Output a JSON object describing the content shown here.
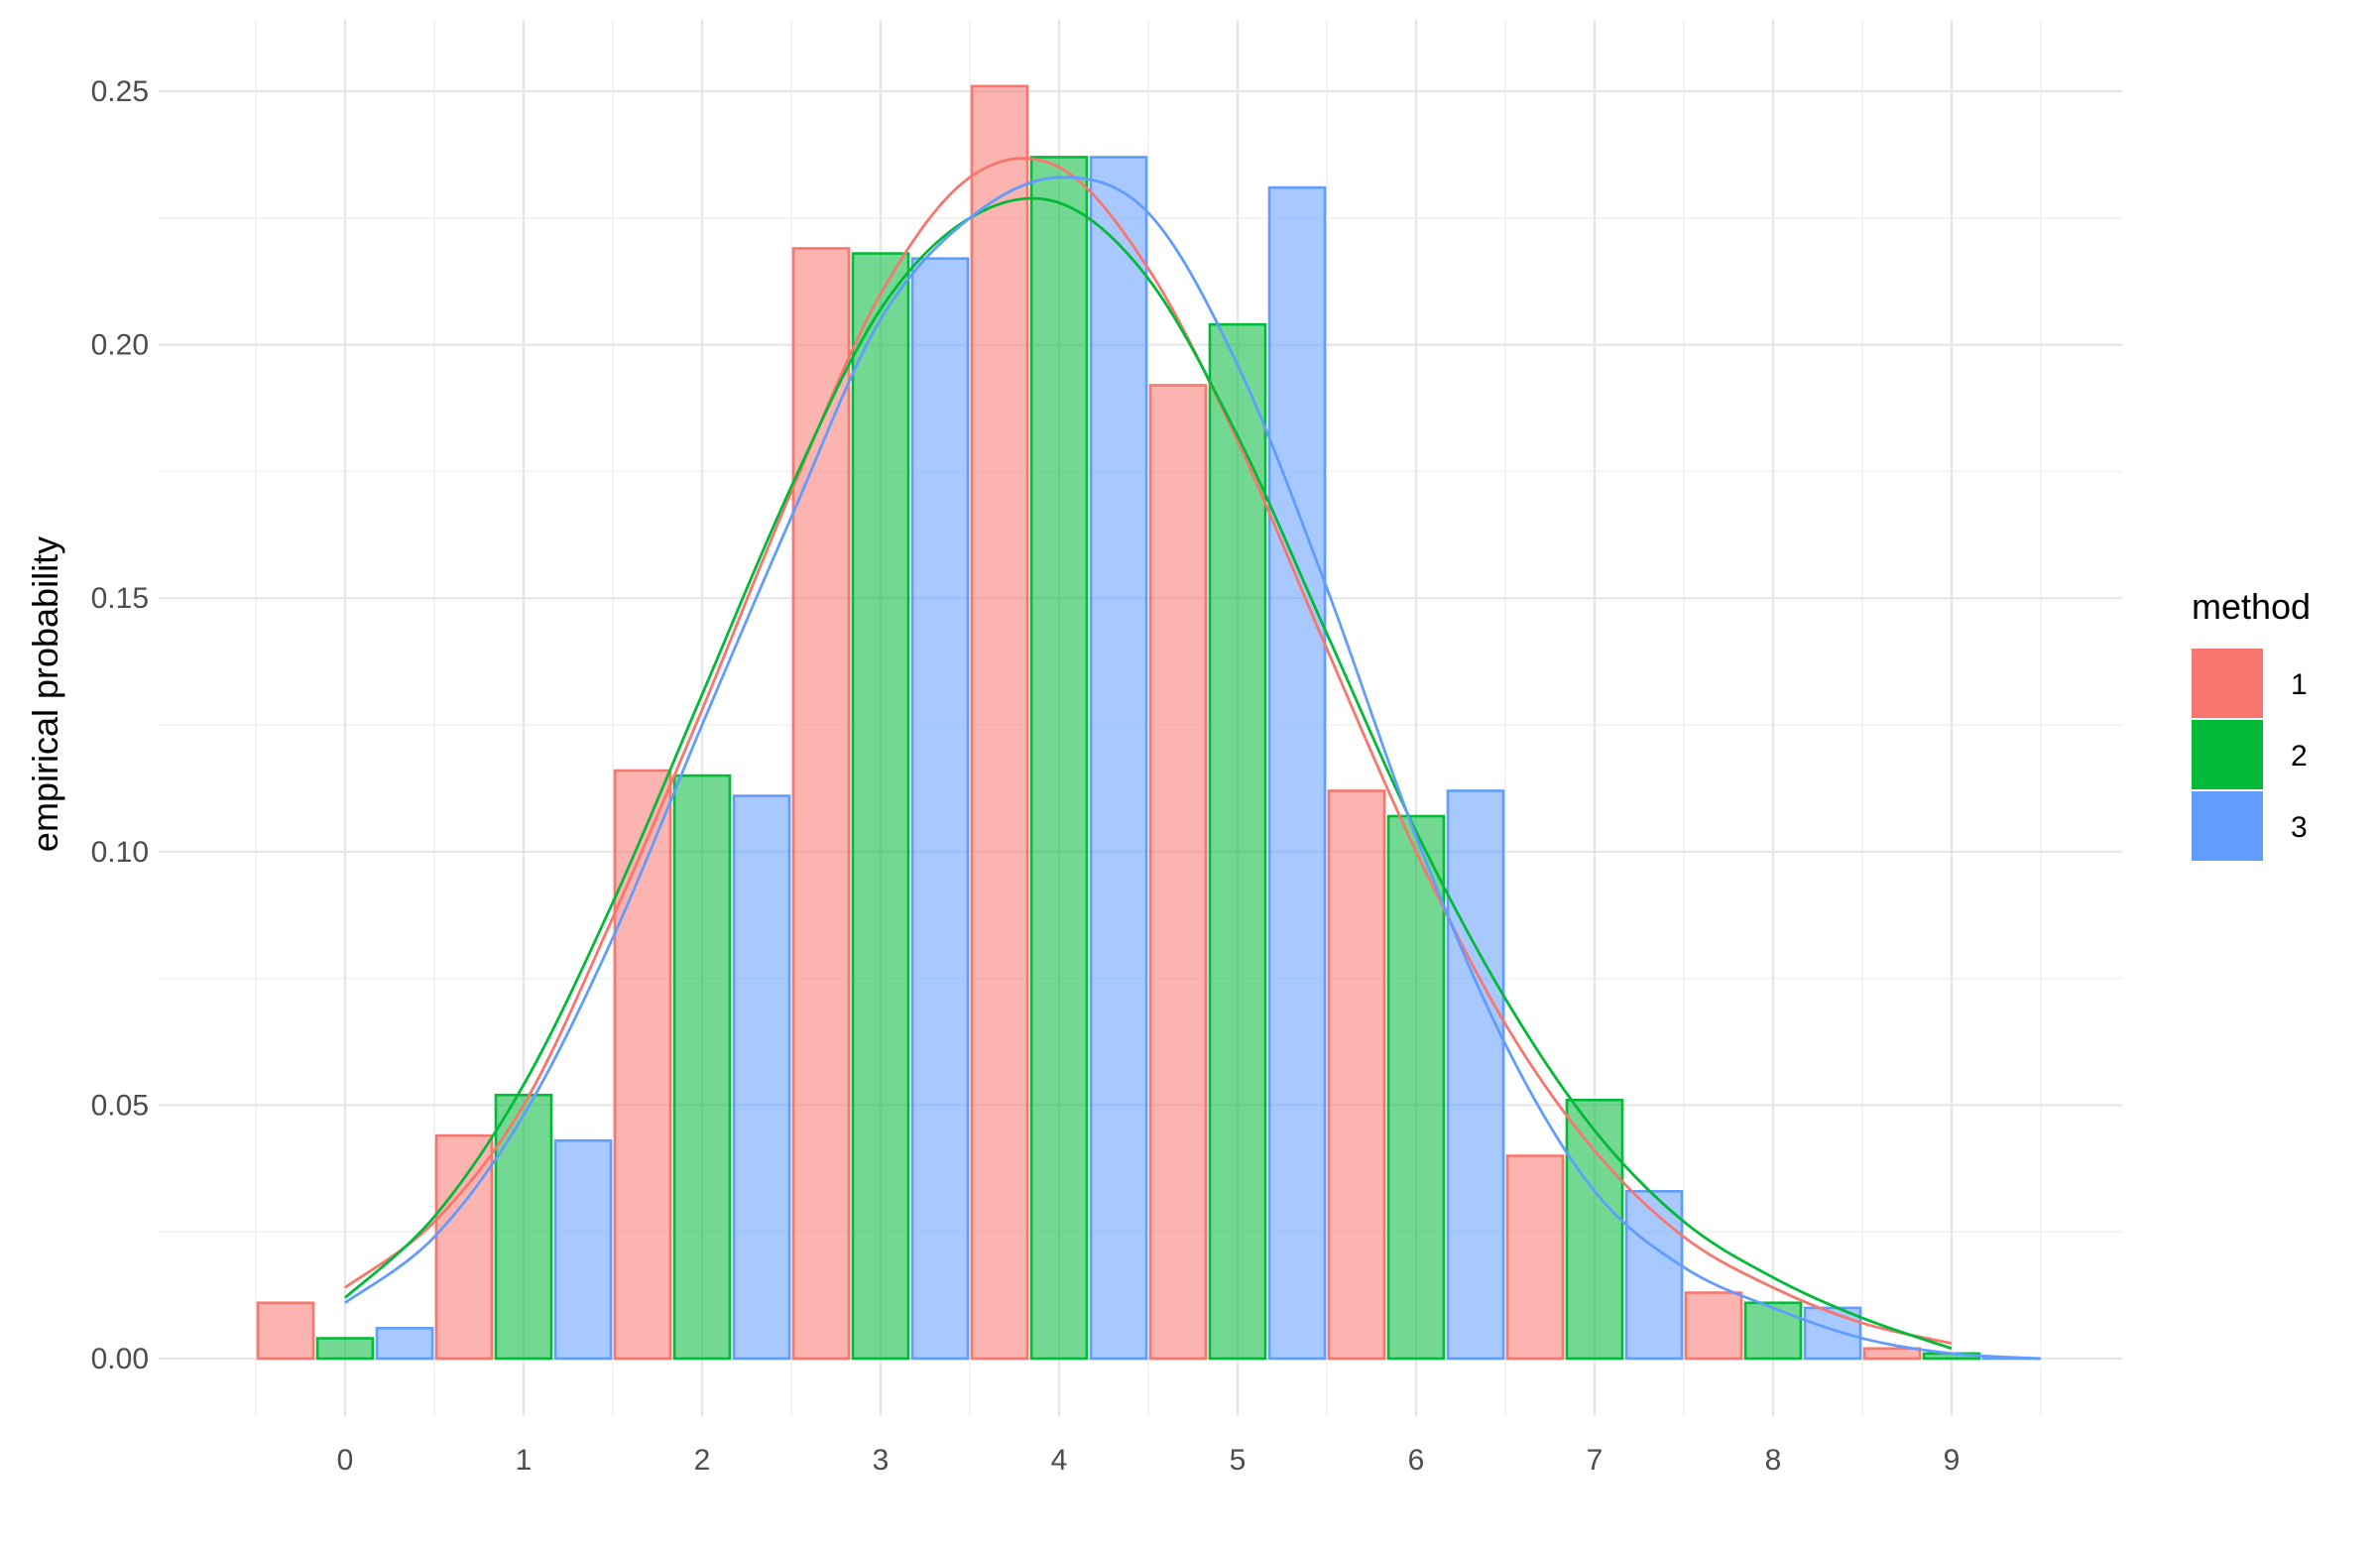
{
  "chart_data": {
    "type": "bar",
    "xlabel": "",
    "ylabel": "empirical probability",
    "x_categories": [
      0,
      1,
      2,
      3,
      4,
      5,
      6,
      7,
      8,
      9
    ],
    "xlim": [
      -0.5,
      9.5
    ],
    "ylim": [
      0,
      0.25
    ],
    "x_ticks": [
      "0",
      "1",
      "2",
      "3",
      "4",
      "5",
      "6",
      "7",
      "8",
      "9"
    ],
    "y_ticks": [
      "0.00",
      "0.05",
      "0.10",
      "0.15",
      "0.20",
      "0.25"
    ],
    "grid": true,
    "legend": {
      "title": "method",
      "position": "right"
    },
    "series": [
      {
        "name": "1",
        "color": "#F8766D",
        "values": [
          0.011,
          0.044,
          0.116,
          0.219,
          0.251,
          0.192,
          0.112,
          0.04,
          0.013,
          0.002
        ],
        "density": {
          "x": [
            0,
            0.5,
            1,
            1.5,
            2,
            2.5,
            3,
            3.5,
            4,
            4.5,
            5,
            5.5,
            6,
            6.5,
            7,
            7.5,
            8,
            8.5,
            9
          ],
          "y": [
            0.014,
            0.027,
            0.05,
            0.087,
            0.128,
            0.171,
            0.21,
            0.233,
            0.235,
            0.215,
            0.181,
            0.14,
            0.1,
            0.066,
            0.041,
            0.024,
            0.014,
            0.007,
            0.003
          ]
        }
      },
      {
        "name": "2",
        "color": "#00BA38",
        "values": [
          0.004,
          0.052,
          0.115,
          0.218,
          0.237,
          0.204,
          0.107,
          0.051,
          0.011,
          0.001
        ],
        "density": {
          "x": [
            0,
            0.5,
            1,
            1.5,
            2,
            2.5,
            3,
            3.5,
            4,
            4.5,
            5,
            5.5,
            6,
            6.5,
            7,
            7.5,
            8,
            8.5,
            9
          ],
          "y": [
            0.012,
            0.028,
            0.054,
            0.09,
            0.131,
            0.172,
            0.207,
            0.225,
            0.228,
            0.213,
            0.182,
            0.143,
            0.104,
            0.071,
            0.045,
            0.027,
            0.016,
            0.008,
            0.002
          ]
        }
      },
      {
        "name": "3",
        "color": "#619CFF",
        "values": [
          0.006,
          0.043,
          0.111,
          0.217,
          0.237,
          0.231,
          0.112,
          0.033,
          0.01,
          0.0
        ],
        "density": {
          "x": [
            0,
            0.5,
            1,
            1.5,
            2,
            2.5,
            3,
            3.5,
            4,
            4.5,
            5,
            5.5,
            6,
            6.5,
            7,
            7.5,
            8,
            8.5,
            9,
            9.5
          ],
          "y": [
            0.011,
            0.024,
            0.048,
            0.083,
            0.125,
            0.166,
            0.205,
            0.225,
            0.233,
            0.226,
            0.196,
            0.152,
            0.103,
            0.062,
            0.033,
            0.018,
            0.01,
            0.004,
            0.001,
            0.0
          ]
        }
      }
    ]
  }
}
